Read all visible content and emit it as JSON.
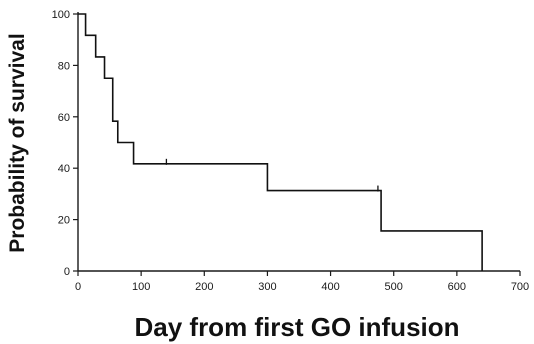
{
  "chart_data": {
    "type": "line",
    "step": true,
    "title": "",
    "xlabel": "Day from first GO infusion",
    "ylabel": "Probability of survival",
    "xlim": [
      0,
      700
    ],
    "ylim": [
      0,
      100
    ],
    "x_ticks": [
      "0",
      "100",
      "200",
      "300",
      "400",
      "500",
      "600",
      "700"
    ],
    "y_ticks": [
      "0",
      "20",
      "40",
      "60",
      "80",
      "100"
    ],
    "grid": false,
    "legend": "none",
    "line_color": "#111111",
    "series": [
      {
        "x": [
          0,
          12,
          28,
          42,
          55,
          63,
          88,
          300,
          480,
          640
        ],
        "y": [
          100,
          91.7,
          83.3,
          75,
          58.3,
          50,
          41.7,
          31.3,
          15.6,
          0
        ]
      }
    ],
    "censored": [
      {
        "x": 55,
        "y": 66.7
      },
      {
        "x": 140,
        "y": 41.7
      },
      {
        "x": 475,
        "y": 31.3
      }
    ]
  }
}
